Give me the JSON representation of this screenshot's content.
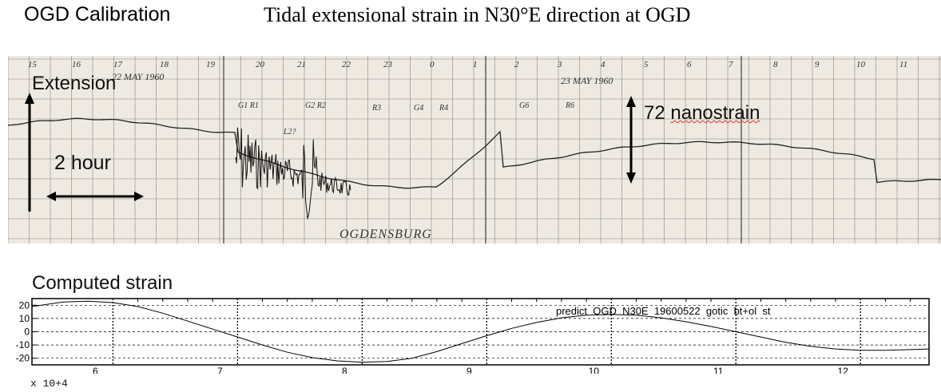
{
  "header": {
    "left_title": "OGD Calibration",
    "main_title": "Tidal extensional strain in N30°E direction at OGD"
  },
  "record": {
    "annotations": {
      "extension": "Extension",
      "two_hour": "2 hour",
      "nanostrain_value": "72",
      "nanostrain_unit": "nanostrain"
    },
    "handwritten": {
      "date1": "22 MAY 1960",
      "date2": "23 MAY 1960",
      "station": "OGDENSBURG",
      "hour_labels": [
        "15",
        "16",
        "17",
        "18",
        "19",
        "20",
        "21",
        "22",
        "23",
        "0",
        "1",
        "2",
        "3",
        "4",
        "5",
        "6",
        "7",
        "8",
        "9",
        "10",
        "11"
      ],
      "phase_labels": [
        "G1 R1",
        "G2 R2",
        "R3",
        "G4",
        "R4",
        "G6",
        "R6",
        "L2?"
      ]
    }
  },
  "chart_data": {
    "type": "line",
    "title": "Computed strain",
    "legend_text": "predict  OGD  N30E  19600522  gotic  bt+ol  st",
    "x_multiplier": "x  10+4",
    "xlim": [
      5.35,
      12.55
    ],
    "ylim": [
      -25,
      25
    ],
    "x_ticks": [
      6,
      7,
      8,
      9,
      10,
      11,
      12
    ],
    "y_ticks": [
      20,
      10,
      0,
      -10,
      -20
    ],
    "grid": true,
    "series": [
      {
        "x": [
          5.35,
          5.6,
          5.8,
          6.0,
          6.2,
          6.4,
          6.6,
          6.8,
          7.0,
          7.2,
          7.4,
          7.6,
          7.8,
          8.0,
          8.2,
          8.4,
          8.6,
          8.8,
          9.0,
          9.2,
          9.4,
          9.6,
          9.8,
          10.0,
          10.2,
          10.4,
          10.6,
          10.8,
          11.0,
          11.2,
          11.4,
          11.6,
          11.8,
          12.0,
          12.2,
          12.4,
          12.55
        ],
        "y": [
          19,
          22.5,
          23,
          22,
          19,
          14,
          8,
          2,
          -4,
          -10,
          -15.5,
          -19.5,
          -22,
          -23,
          -22.5,
          -20,
          -15,
          -9,
          -3,
          2.5,
          7,
          10.5,
          12.5,
          13,
          12.5,
          10.5,
          7.5,
          4,
          0,
          -4,
          -8,
          -11,
          -13,
          -14,
          -14,
          -13.5,
          -13
        ]
      }
    ]
  }
}
